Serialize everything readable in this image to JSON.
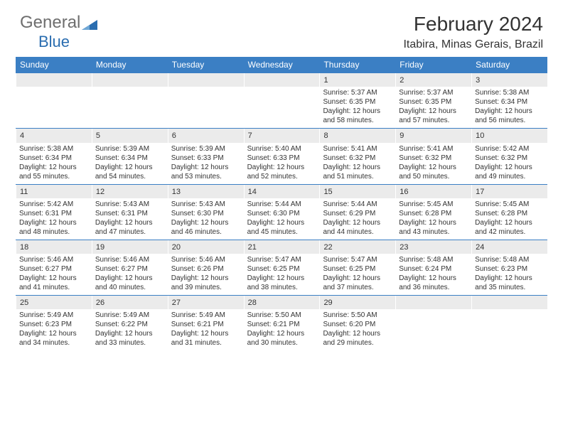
{
  "logo": {
    "text1": "General",
    "text2": "Blue"
  },
  "title": "February 2024",
  "location": "Itabira, Minas Gerais, Brazil",
  "colors": {
    "accent": "#3b7fc4",
    "header_text": "#ffffff",
    "body_text": "#333333",
    "daynum_bg": "#ebebeb",
    "logo_gray": "#6e6e6e",
    "logo_blue": "#2a6db0"
  },
  "days_of_week": [
    "Sunday",
    "Monday",
    "Tuesday",
    "Wednesday",
    "Thursday",
    "Friday",
    "Saturday"
  ],
  "weeks": [
    [
      null,
      null,
      null,
      null,
      {
        "n": "1",
        "sr": "5:37 AM",
        "ss": "6:35 PM",
        "d1": "12 hours",
        "d2": "and 58 minutes."
      },
      {
        "n": "2",
        "sr": "5:37 AM",
        "ss": "6:35 PM",
        "d1": "12 hours",
        "d2": "and 57 minutes."
      },
      {
        "n": "3",
        "sr": "5:38 AM",
        "ss": "6:34 PM",
        "d1": "12 hours",
        "d2": "and 56 minutes."
      }
    ],
    [
      {
        "n": "4",
        "sr": "5:38 AM",
        "ss": "6:34 PM",
        "d1": "12 hours",
        "d2": "and 55 minutes."
      },
      {
        "n": "5",
        "sr": "5:39 AM",
        "ss": "6:34 PM",
        "d1": "12 hours",
        "d2": "and 54 minutes."
      },
      {
        "n": "6",
        "sr": "5:39 AM",
        "ss": "6:33 PM",
        "d1": "12 hours",
        "d2": "and 53 minutes."
      },
      {
        "n": "7",
        "sr": "5:40 AM",
        "ss": "6:33 PM",
        "d1": "12 hours",
        "d2": "and 52 minutes."
      },
      {
        "n": "8",
        "sr": "5:41 AM",
        "ss": "6:32 PM",
        "d1": "12 hours",
        "d2": "and 51 minutes."
      },
      {
        "n": "9",
        "sr": "5:41 AM",
        "ss": "6:32 PM",
        "d1": "12 hours",
        "d2": "and 50 minutes."
      },
      {
        "n": "10",
        "sr": "5:42 AM",
        "ss": "6:32 PM",
        "d1": "12 hours",
        "d2": "and 49 minutes."
      }
    ],
    [
      {
        "n": "11",
        "sr": "5:42 AM",
        "ss": "6:31 PM",
        "d1": "12 hours",
        "d2": "and 48 minutes."
      },
      {
        "n": "12",
        "sr": "5:43 AM",
        "ss": "6:31 PM",
        "d1": "12 hours",
        "d2": "and 47 minutes."
      },
      {
        "n": "13",
        "sr": "5:43 AM",
        "ss": "6:30 PM",
        "d1": "12 hours",
        "d2": "and 46 minutes."
      },
      {
        "n": "14",
        "sr": "5:44 AM",
        "ss": "6:30 PM",
        "d1": "12 hours",
        "d2": "and 45 minutes."
      },
      {
        "n": "15",
        "sr": "5:44 AM",
        "ss": "6:29 PM",
        "d1": "12 hours",
        "d2": "and 44 minutes."
      },
      {
        "n": "16",
        "sr": "5:45 AM",
        "ss": "6:28 PM",
        "d1": "12 hours",
        "d2": "and 43 minutes."
      },
      {
        "n": "17",
        "sr": "5:45 AM",
        "ss": "6:28 PM",
        "d1": "12 hours",
        "d2": "and 42 minutes."
      }
    ],
    [
      {
        "n": "18",
        "sr": "5:46 AM",
        "ss": "6:27 PM",
        "d1": "12 hours",
        "d2": "and 41 minutes."
      },
      {
        "n": "19",
        "sr": "5:46 AM",
        "ss": "6:27 PM",
        "d1": "12 hours",
        "d2": "and 40 minutes."
      },
      {
        "n": "20",
        "sr": "5:46 AM",
        "ss": "6:26 PM",
        "d1": "12 hours",
        "d2": "and 39 minutes."
      },
      {
        "n": "21",
        "sr": "5:47 AM",
        "ss": "6:25 PM",
        "d1": "12 hours",
        "d2": "and 38 minutes."
      },
      {
        "n": "22",
        "sr": "5:47 AM",
        "ss": "6:25 PM",
        "d1": "12 hours",
        "d2": "and 37 minutes."
      },
      {
        "n": "23",
        "sr": "5:48 AM",
        "ss": "6:24 PM",
        "d1": "12 hours",
        "d2": "and 36 minutes."
      },
      {
        "n": "24",
        "sr": "5:48 AM",
        "ss": "6:23 PM",
        "d1": "12 hours",
        "d2": "and 35 minutes."
      }
    ],
    [
      {
        "n": "25",
        "sr": "5:49 AM",
        "ss": "6:23 PM",
        "d1": "12 hours",
        "d2": "and 34 minutes."
      },
      {
        "n": "26",
        "sr": "5:49 AM",
        "ss": "6:22 PM",
        "d1": "12 hours",
        "d2": "and 33 minutes."
      },
      {
        "n": "27",
        "sr": "5:49 AM",
        "ss": "6:21 PM",
        "d1": "12 hours",
        "d2": "and 31 minutes."
      },
      {
        "n": "28",
        "sr": "5:50 AM",
        "ss": "6:21 PM",
        "d1": "12 hours",
        "d2": "and 30 minutes."
      },
      {
        "n": "29",
        "sr": "5:50 AM",
        "ss": "6:20 PM",
        "d1": "12 hours",
        "d2": "and 29 minutes."
      },
      null,
      null
    ]
  ],
  "labels": {
    "sunrise": "Sunrise: ",
    "sunset": "Sunset: ",
    "daylight": "Daylight: "
  }
}
